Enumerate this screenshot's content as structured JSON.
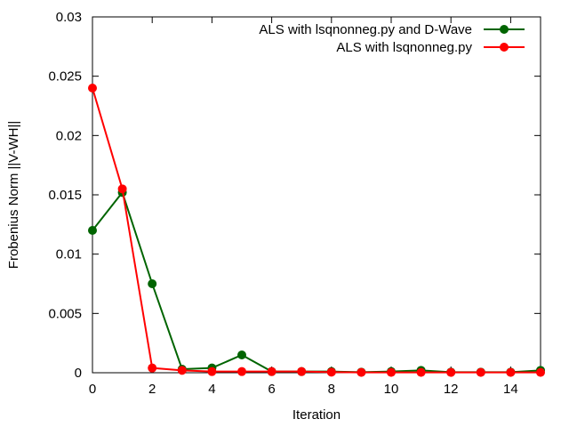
{
  "chart_data": {
    "type": "line",
    "xlabel": "Iteration",
    "ylabel": "Frobenius Norm ||V-WH||",
    "xlim": [
      0,
      15
    ],
    "ylim": [
      0,
      0.03
    ],
    "x_ticks": [
      0,
      2,
      4,
      6,
      8,
      10,
      12,
      14
    ],
    "y_ticks": [
      0,
      0.005,
      0.01,
      0.015,
      0.02,
      0.025,
      0.03
    ],
    "y_tick_labels": [
      "0",
      "0.005",
      "0.01",
      "0.015",
      "0.02",
      "0.025",
      "0.03"
    ],
    "grid": false,
    "legend_position": "top-right",
    "x": [
      0,
      1,
      2,
      3,
      4,
      5,
      6,
      7,
      8,
      9,
      10,
      11,
      12,
      13,
      14,
      15
    ],
    "series": [
      {
        "name": "ALS with lsqnonneg.py and D-Wave",
        "color": "#006400",
        "values": [
          0.012,
          0.0152,
          0.0075,
          0.0003,
          0.0004,
          0.0015,
          0.0001,
          0.0001,
          0.0001,
          5e-05,
          0.0001,
          0.0002,
          5e-05,
          5e-05,
          5e-05,
          0.0002
        ]
      },
      {
        "name": "ALS with lsqnonneg.py",
        "color": "#ff0000",
        "values": [
          0.024,
          0.0155,
          0.0004,
          0.0002,
          0.0001,
          0.0001,
          0.0001,
          0.0001,
          5e-05,
          3e-05,
          3e-05,
          3e-05,
          3e-05,
          3e-05,
          3e-05,
          3e-05
        ]
      }
    ]
  }
}
